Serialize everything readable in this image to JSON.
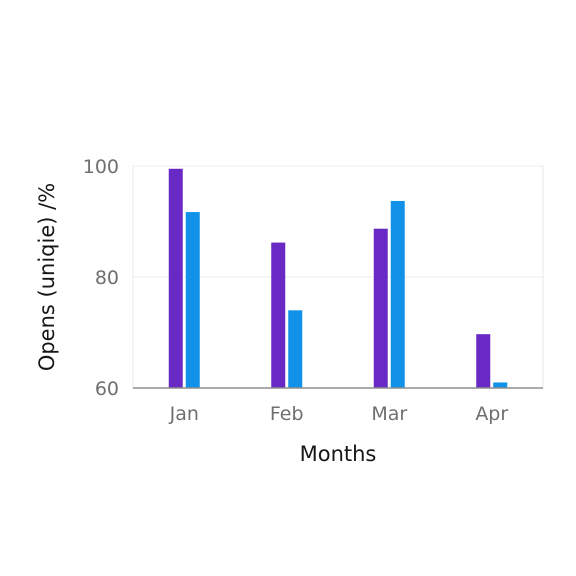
{
  "chart_data": {
    "type": "bar",
    "title": "",
    "xlabel": "Months",
    "ylabel": "Opens (uniqie) /%",
    "categories": [
      "Jan",
      "Feb",
      "Mar",
      "Apr"
    ],
    "series": [
      {
        "values": [
          99.5,
          86.2,
          88.7,
          69.7
        ],
        "color": "#6929c4"
      },
      {
        "values": [
          91.7,
          74.0,
          93.7,
          61.0
        ],
        "color": "#1192e8"
      }
    ],
    "ylim": [
      60,
      100
    ],
    "yticks": [
      60,
      80,
      100
    ],
    "grid": true,
    "legend": "none"
  }
}
